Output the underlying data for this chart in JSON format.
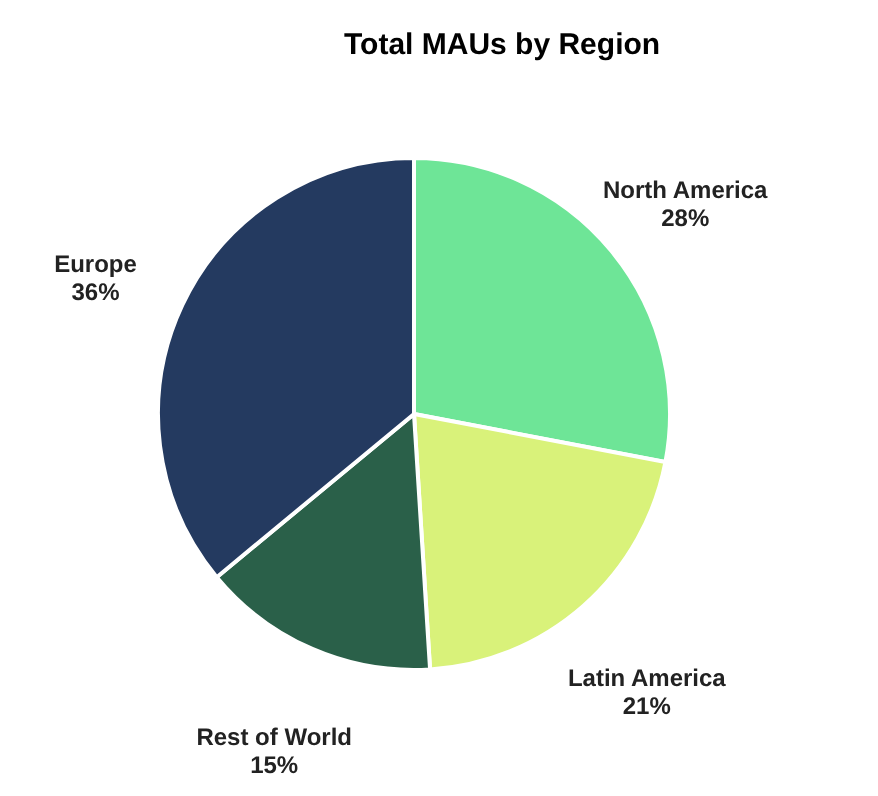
{
  "chart_data": {
    "type": "pie",
    "title": "Total MAUs by Region",
    "categories": [
      "North America",
      "Latin America",
      "Rest of World",
      "Europe"
    ],
    "values": [
      28,
      21,
      15,
      36
    ],
    "value_labels": [
      "28%",
      "21%",
      "15%",
      "36%"
    ],
    "colors": [
      "#6ee597",
      "#d9f27a",
      "#2a6049",
      "#243a60"
    ],
    "legend": false
  }
}
